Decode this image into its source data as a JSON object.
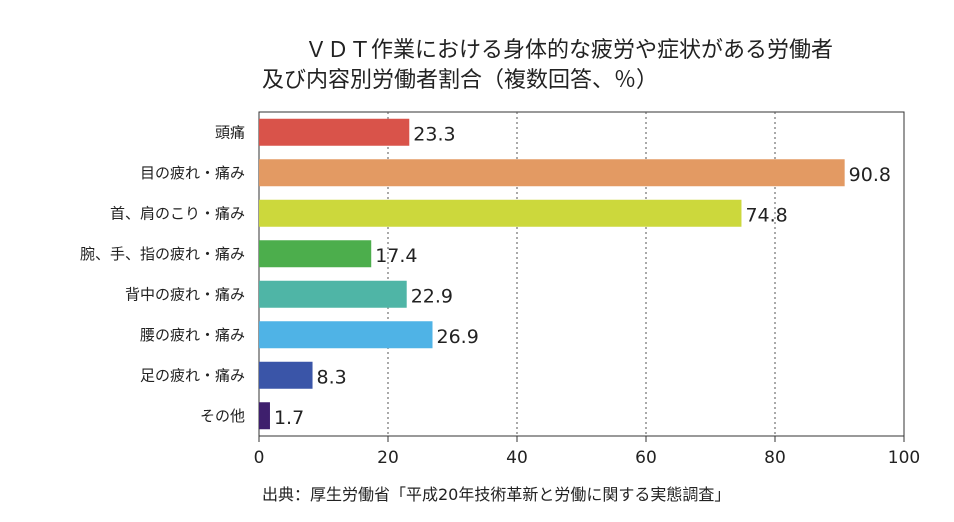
{
  "chart_data": {
    "type": "bar",
    "orientation": "horizontal",
    "title_lines": [
      "ＶＤＴ作業における身体的な疲労や症状がある労働者",
      "及び内容別労働者割合（複数回答、％）"
    ],
    "categories": [
      "頭痛",
      "目の疲れ・痛み",
      "首、肩のこり・痛み",
      "腕、手、指の疲れ・痛み",
      "背中の疲れ・痛み",
      "腰の疲れ・痛み",
      "足の疲れ・痛み",
      "その他"
    ],
    "values": [
      23.3,
      90.8,
      74.8,
      17.4,
      22.9,
      26.9,
      8.3,
      1.7
    ],
    "value_labels": [
      "23.3",
      "90.8",
      "74.8",
      "17.4",
      "22.9",
      "26.9",
      "8.3",
      "1.7"
    ],
    "colors": [
      "#d9534a",
      "#e39a63",
      "#ccd83c",
      "#4cae4c",
      "#4fb5a6",
      "#4fb3e6",
      "#3a55a8",
      "#3e1f6d"
    ],
    "xlim": [
      0,
      100
    ],
    "xticks": [
      0,
      20,
      40,
      60,
      80,
      100
    ],
    "xtick_labels": [
      "0",
      "20",
      "40",
      "60",
      "80",
      "100"
    ],
    "grid": "vertical-dotted",
    "source": "出典：厚生労働省「平成20年技術革新と労働に関する実態調査」"
  }
}
